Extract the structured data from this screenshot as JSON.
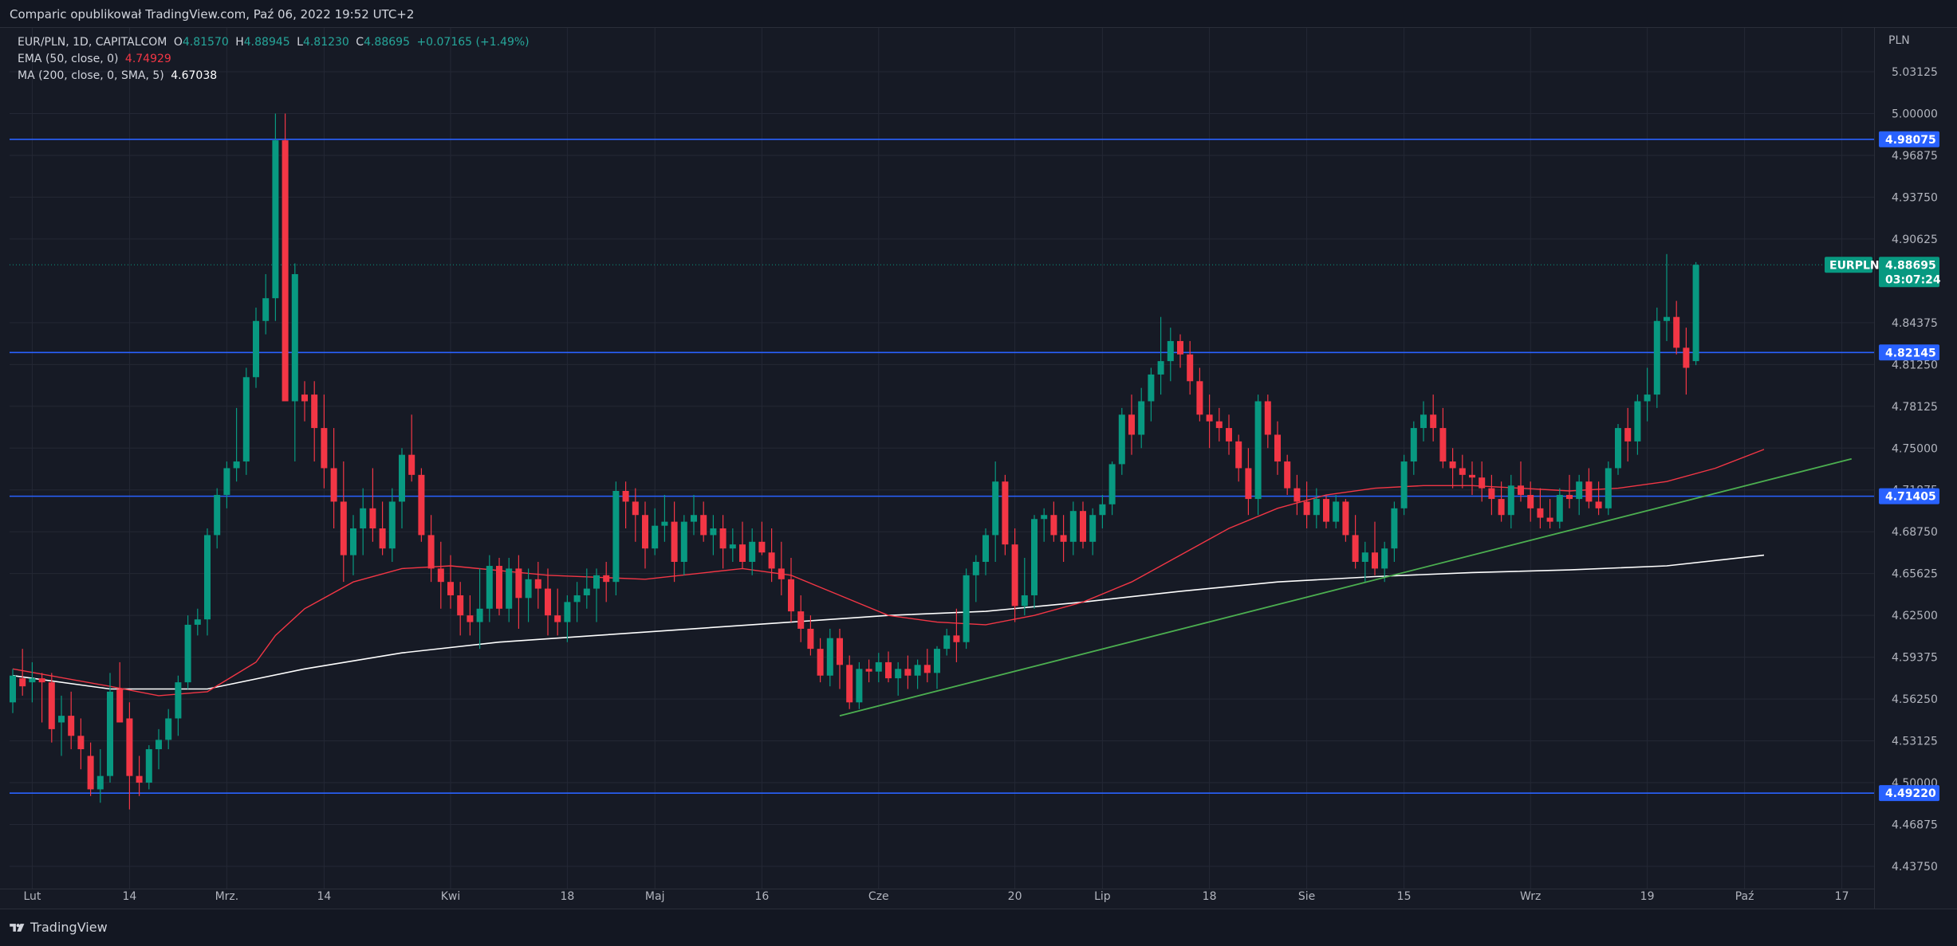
{
  "header": {
    "published": "Comparic opublikował TradingView.com, Paź 06, 2022 19:52 UTC+2"
  },
  "legend": {
    "symbol": "EUR/PLN, 1D, CAPITALCOM",
    "o_label": "O",
    "o_value": "4.81570",
    "h_label": "H",
    "h_value": "4.88945",
    "l_label": "L",
    "l_value": "4.81230",
    "c_label": "C",
    "c_value": "4.88695",
    "change": "+0.07165 (+1.49%)",
    "ema_label": "EMA (50, close, 0)",
    "ema_value": "4.74929",
    "ma_label": "MA (200, close, 0, SMA, 5)",
    "ma_value": "4.67038"
  },
  "footer": {
    "brand": "TradingView"
  },
  "chart_data": {
    "type": "candlestick",
    "symbol": "EURPLN",
    "currency": "PLN",
    "ylim": [
      4.42,
      5.04
    ],
    "y_ticks": [
      "5.03125",
      "5.00000",
      "4.96875",
      "4.93750",
      "4.90625",
      "4.84375",
      "4.81250",
      "4.78125",
      "4.75000",
      "4.71875",
      "4.68750",
      "4.65625",
      "4.62500",
      "4.59375",
      "4.56250",
      "4.53125",
      "4.50000",
      "4.46875",
      "4.43750"
    ],
    "x_labels": [
      {
        "label": "Lut",
        "i": 2
      },
      {
        "label": "14",
        "i": 12
      },
      {
        "label": "Mrz.",
        "i": 22
      },
      {
        "label": "14",
        "i": 32
      },
      {
        "label": "Kwi",
        "i": 45
      },
      {
        "label": "18",
        "i": 57
      },
      {
        "label": "Maj",
        "i": 66
      },
      {
        "label": "16",
        "i": 77
      },
      {
        "label": "Cze",
        "i": 89
      },
      {
        "label": "20",
        "i": 103
      },
      {
        "label": "Lip",
        "i": 112
      },
      {
        "label": "18",
        "i": 123
      },
      {
        "label": "Sie",
        "i": 133
      },
      {
        "label": "15",
        "i": 143
      },
      {
        "label": "Wrz",
        "i": 156
      },
      {
        "label": "19",
        "i": 168
      },
      {
        "label": "Paź",
        "i": 178
      },
      {
        "label": "17",
        "i": 188
      }
    ],
    "candles": [
      [
        4.56,
        4.585,
        4.552,
        4.58
      ],
      [
        4.578,
        4.6,
        4.565,
        4.572
      ],
      [
        4.575,
        4.59,
        4.56,
        4.578
      ],
      [
        4.578,
        4.582,
        4.545,
        4.575
      ],
      [
        4.575,
        4.582,
        4.53,
        4.54
      ],
      [
        4.545,
        4.565,
        4.52,
        4.55
      ],
      [
        4.55,
        4.568,
        4.525,
        4.535
      ],
      [
        4.535,
        4.548,
        4.51,
        4.525
      ],
      [
        4.52,
        4.53,
        4.49,
        4.495
      ],
      [
        4.495,
        4.525,
        4.485,
        4.505
      ],
      [
        4.505,
        4.582,
        4.5,
        4.568
      ],
      [
        4.57,
        4.59,
        4.545,
        4.545
      ],
      [
        4.548,
        4.56,
        4.48,
        4.505
      ],
      [
        4.505,
        4.52,
        4.49,
        4.5
      ],
      [
        4.5,
        4.528,
        4.495,
        4.525
      ],
      [
        4.525,
        4.54,
        4.51,
        4.532
      ],
      [
        4.532,
        4.555,
        4.525,
        4.548
      ],
      [
        4.548,
        4.58,
        4.535,
        4.575
      ],
      [
        4.575,
        4.625,
        4.57,
        4.618
      ],
      [
        4.618,
        4.63,
        4.61,
        4.622
      ],
      [
        4.622,
        4.69,
        4.61,
        4.685
      ],
      [
        4.685,
        4.72,
        4.675,
        4.715
      ],
      [
        4.715,
        4.74,
        4.705,
        4.735
      ],
      [
        4.735,
        4.78,
        4.725,
        4.74
      ],
      [
        4.74,
        4.81,
        4.73,
        4.803
      ],
      [
        4.803,
        4.855,
        4.795,
        4.845
      ],
      [
        4.845,
        4.88,
        4.835,
        4.862
      ],
      [
        4.862,
        5.0,
        4.845,
        4.98
      ],
      [
        4.98,
        5.0,
        4.79,
        4.785
      ],
      [
        4.785,
        4.888,
        4.74,
        4.88
      ],
      [
        4.79,
        4.8,
        4.77,
        4.785
      ],
      [
        4.79,
        4.8,
        4.74,
        4.765
      ],
      [
        4.765,
        4.79,
        4.72,
        4.735
      ],
      [
        4.735,
        4.765,
        4.69,
        4.71
      ],
      [
        4.71,
        4.74,
        4.65,
        4.67
      ],
      [
        4.67,
        4.7,
        4.655,
        4.69
      ],
      [
        4.69,
        4.72,
        4.67,
        4.705
      ],
      [
        4.705,
        4.735,
        4.68,
        4.69
      ],
      [
        4.69,
        4.71,
        4.67,
        4.675
      ],
      [
        4.675,
        4.72,
        4.665,
        4.71
      ],
      [
        4.71,
        4.75,
        4.69,
        4.745
      ],
      [
        4.745,
        4.775,
        4.725,
        4.73
      ],
      [
        4.73,
        4.735,
        4.68,
        4.685
      ],
      [
        4.685,
        4.7,
        4.65,
        4.66
      ],
      [
        4.66,
        4.68,
        4.63,
        4.65
      ],
      [
        4.65,
        4.67,
        4.63,
        4.64
      ],
      [
        4.64,
        4.65,
        4.61,
        4.625
      ],
      [
        4.625,
        4.64,
        4.61,
        4.62
      ],
      [
        4.62,
        4.66,
        4.6,
        4.63
      ],
      [
        4.63,
        4.67,
        4.62,
        4.662
      ],
      [
        4.662,
        4.668,
        4.625,
        4.63
      ],
      [
        4.63,
        4.668,
        4.62,
        4.66
      ],
      [
        4.66,
        4.67,
        4.615,
        4.638
      ],
      [
        4.638,
        4.66,
        4.62,
        4.652
      ],
      [
        4.652,
        4.665,
        4.63,
        4.645
      ],
      [
        4.645,
        4.66,
        4.61,
        4.625
      ],
      [
        4.625,
        4.645,
        4.61,
        4.62
      ],
      [
        4.62,
        4.64,
        4.605,
        4.635
      ],
      [
        4.635,
        4.65,
        4.62,
        4.64
      ],
      [
        4.64,
        4.66,
        4.63,
        4.645
      ],
      [
        4.645,
        4.66,
        4.62,
        4.655
      ],
      [
        4.655,
        4.665,
        4.635,
        4.65
      ],
      [
        4.65,
        4.725,
        4.64,
        4.718
      ],
      [
        4.718,
        4.725,
        4.69,
        4.71
      ],
      [
        4.71,
        4.72,
        4.68,
        4.7
      ],
      [
        4.7,
        4.71,
        4.66,
        4.675
      ],
      [
        4.675,
        4.705,
        4.67,
        4.692
      ],
      [
        4.692,
        4.715,
        4.68,
        4.695
      ],
      [
        4.695,
        4.71,
        4.65,
        4.665
      ],
      [
        4.665,
        4.7,
        4.655,
        4.695
      ],
      [
        4.695,
        4.715,
        4.685,
        4.7
      ],
      [
        4.7,
        4.71,
        4.68,
        4.685
      ],
      [
        4.685,
        4.7,
        4.67,
        4.69
      ],
      [
        4.69,
        4.7,
        4.66,
        4.675
      ],
      [
        4.675,
        4.69,
        4.665,
        4.678
      ],
      [
        4.678,
        4.695,
        4.66,
        4.665
      ],
      [
        4.665,
        4.69,
        4.655,
        4.68
      ],
      [
        4.68,
        4.695,
        4.67,
        4.672
      ],
      [
        4.672,
        4.69,
        4.65,
        4.66
      ],
      [
        4.66,
        4.68,
        4.64,
        4.652
      ],
      [
        4.652,
        4.668,
        4.62,
        4.628
      ],
      [
        4.628,
        4.64,
        4.605,
        4.615
      ],
      [
        4.615,
        4.625,
        4.595,
        4.6
      ],
      [
        4.6,
        4.608,
        4.575,
        4.58
      ],
      [
        4.58,
        4.615,
        4.572,
        4.608
      ],
      [
        4.608,
        4.615,
        4.57,
        4.588
      ],
      [
        4.588,
        4.595,
        4.555,
        4.56
      ],
      [
        4.56,
        4.59,
        4.555,
        4.585
      ],
      [
        4.585,
        4.592,
        4.575,
        4.583
      ],
      [
        4.583,
        4.597,
        4.575,
        4.59
      ],
      [
        4.59,
        4.598,
        4.575,
        4.578
      ],
      [
        4.578,
        4.59,
        4.565,
        4.585
      ],
      [
        4.585,
        4.595,
        4.57,
        4.58
      ],
      [
        4.58,
        4.592,
        4.57,
        4.588
      ],
      [
        4.588,
        4.6,
        4.575,
        4.582
      ],
      [
        4.582,
        4.602,
        4.57,
        4.6
      ],
      [
        4.6,
        4.615,
        4.595,
        4.61
      ],
      [
        4.61,
        4.63,
        4.59,
        4.605
      ],
      [
        4.605,
        4.66,
        4.6,
        4.655
      ],
      [
        4.655,
        4.67,
        4.635,
        4.665
      ],
      [
        4.665,
        4.69,
        4.655,
        4.685
      ],
      [
        4.685,
        4.74,
        4.665,
        4.725
      ],
      [
        4.725,
        4.73,
        4.67,
        4.678
      ],
      [
        4.678,
        4.69,
        4.62,
        4.632
      ],
      [
        4.632,
        4.668,
        4.625,
        4.64
      ],
      [
        4.64,
        4.7,
        4.63,
        4.697
      ],
      [
        4.697,
        4.705,
        4.68,
        4.7
      ],
      [
        4.7,
        4.71,
        4.68,
        4.685
      ],
      [
        4.685,
        4.7,
        4.665,
        4.68
      ],
      [
        4.68,
        4.71,
        4.67,
        4.703
      ],
      [
        4.703,
        4.71,
        4.675,
        4.68
      ],
      [
        4.68,
        4.705,
        4.67,
        4.7
      ],
      [
        4.7,
        4.715,
        4.69,
        4.708
      ],
      [
        4.708,
        4.74,
        4.7,
        4.738
      ],
      [
        4.738,
        4.78,
        4.73,
        4.775
      ],
      [
        4.775,
        4.79,
        4.745,
        4.76
      ],
      [
        4.76,
        4.795,
        4.75,
        4.785
      ],
      [
        4.785,
        4.81,
        4.77,
        4.805
      ],
      [
        4.805,
        4.848,
        4.79,
        4.815
      ],
      [
        4.815,
        4.84,
        4.8,
        4.83
      ],
      [
        4.83,
        4.835,
        4.81,
        4.82
      ],
      [
        4.82,
        4.83,
        4.79,
        4.8
      ],
      [
        4.8,
        4.81,
        4.77,
        4.775
      ],
      [
        4.775,
        4.79,
        4.75,
        4.77
      ],
      [
        4.77,
        4.78,
        4.755,
        4.765
      ],
      [
        4.765,
        4.775,
        4.745,
        4.755
      ],
      [
        4.755,
        4.76,
        4.725,
        4.735
      ],
      [
        4.735,
        4.75,
        4.7,
        4.712
      ],
      [
        4.712,
        4.79,
        4.7,
        4.785
      ],
      [
        4.785,
        4.79,
        4.75,
        4.76
      ],
      [
        4.76,
        4.77,
        4.73,
        4.74
      ],
      [
        4.74,
        4.745,
        4.715,
        4.72
      ],
      [
        4.72,
        4.73,
        4.7,
        4.71
      ],
      [
        4.71,
        4.725,
        4.69,
        4.7
      ],
      [
        4.7,
        4.72,
        4.69,
        4.712
      ],
      [
        4.712,
        4.715,
        4.69,
        4.695
      ],
      [
        4.695,
        4.715,
        4.69,
        4.71
      ],
      [
        4.71,
        4.712,
        4.68,
        4.685
      ],
      [
        4.685,
        4.7,
        4.66,
        4.665
      ],
      [
        4.665,
        4.68,
        4.65,
        4.672
      ],
      [
        4.672,
        4.695,
        4.655,
        4.66
      ],
      [
        4.66,
        4.68,
        4.65,
        4.675
      ],
      [
        4.675,
        4.71,
        4.665,
        4.705
      ],
      [
        4.705,
        4.745,
        4.7,
        4.74
      ],
      [
        4.74,
        4.77,
        4.73,
        4.765
      ],
      [
        4.765,
        4.785,
        4.755,
        4.775
      ],
      [
        4.775,
        4.79,
        4.755,
        4.765
      ],
      [
        4.765,
        4.78,
        4.735,
        4.74
      ],
      [
        4.74,
        4.75,
        4.72,
        4.735
      ],
      [
        4.735,
        4.745,
        4.72,
        4.73
      ],
      [
        4.73,
        4.74,
        4.715,
        4.728
      ],
      [
        4.728,
        4.74,
        4.71,
        4.72
      ],
      [
        4.72,
        4.73,
        4.7,
        4.712
      ],
      [
        4.712,
        4.725,
        4.695,
        4.7
      ],
      [
        4.7,
        4.73,
        4.69,
        4.722
      ],
      [
        4.722,
        4.74,
        4.71,
        4.715
      ],
      [
        4.715,
        4.725,
        4.695,
        4.705
      ],
      [
        4.705,
        4.72,
        4.69,
        4.698
      ],
      [
        4.698,
        4.712,
        4.69,
        4.695
      ],
      [
        4.695,
        4.72,
        4.69,
        4.715
      ],
      [
        4.715,
        4.73,
        4.705,
        4.712
      ],
      [
        4.712,
        4.73,
        4.7,
        4.725
      ],
      [
        4.725,
        4.735,
        4.705,
        4.71
      ],
      [
        4.71,
        4.725,
        4.7,
        4.705
      ],
      [
        4.705,
        4.74,
        4.7,
        4.735
      ],
      [
        4.735,
        4.768,
        4.73,
        4.765
      ],
      [
        4.765,
        4.78,
        4.74,
        4.755
      ],
      [
        4.755,
        4.79,
        4.745,
        4.785
      ],
      [
        4.785,
        4.81,
        4.77,
        4.79
      ],
      [
        4.79,
        4.855,
        4.78,
        4.845
      ],
      [
        4.845,
        4.895,
        4.83,
        4.848
      ],
      [
        4.848,
        4.86,
        4.82,
        4.825
      ],
      [
        4.825,
        4.84,
        4.79,
        4.81
      ],
      [
        4.815,
        4.889,
        4.812,
        4.887
      ]
    ],
    "ema_50": [
      [
        0,
        4.585
      ],
      [
        10,
        4.572
      ],
      [
        15,
        4.565
      ],
      [
        20,
        4.568
      ],
      [
        25,
        4.59
      ],
      [
        27,
        4.61
      ],
      [
        30,
        4.63
      ],
      [
        35,
        4.65
      ],
      [
        40,
        4.66
      ],
      [
        45,
        4.662
      ],
      [
        55,
        4.655
      ],
      [
        65,
        4.652
      ],
      [
        75,
        4.66
      ],
      [
        80,
        4.655
      ],
      [
        85,
        4.64
      ],
      [
        90,
        4.625
      ],
      [
        95,
        4.62
      ],
      [
        100,
        4.618
      ],
      [
        105,
        4.625
      ],
      [
        110,
        4.635
      ],
      [
        115,
        4.65
      ],
      [
        120,
        4.67
      ],
      [
        125,
        4.69
      ],
      [
        130,
        4.705
      ],
      [
        135,
        4.715
      ],
      [
        140,
        4.72
      ],
      [
        145,
        4.722
      ],
      [
        150,
        4.722
      ],
      [
        155,
        4.72
      ],
      [
        160,
        4.718
      ],
      [
        165,
        4.72
      ],
      [
        170,
        4.725
      ],
      [
        175,
        4.735
      ],
      [
        180,
        4.749
      ]
    ],
    "ma_200": [
      [
        0,
        4.58
      ],
      [
        10,
        4.57
      ],
      [
        20,
        4.57
      ],
      [
        30,
        4.585
      ],
      [
        40,
        4.597
      ],
      [
        50,
        4.605
      ],
      [
        60,
        4.61
      ],
      [
        70,
        4.615
      ],
      [
        80,
        4.62
      ],
      [
        90,
        4.625
      ],
      [
        100,
        4.628
      ],
      [
        110,
        4.635
      ],
      [
        120,
        4.643
      ],
      [
        130,
        4.65
      ],
      [
        140,
        4.654
      ],
      [
        150,
        4.657
      ],
      [
        160,
        4.659
      ],
      [
        170,
        4.662
      ],
      [
        180,
        4.67
      ]
    ],
    "trendline": [
      [
        85,
        4.55
      ],
      [
        189,
        4.742
      ]
    ],
    "levels": [
      {
        "label": "4.98075",
        "value": 4.98075,
        "color": "#2962ff"
      },
      {
        "label": "4.82145",
        "value": 4.82145,
        "color": "#2962ff"
      },
      {
        "label": "4.71405",
        "value": 4.71405,
        "color": "#2962ff"
      },
      {
        "label": "4.49220",
        "value": 4.4922,
        "color": "#2962ff"
      }
    ],
    "last_price": {
      "symbol": "EURPLN",
      "value": 4.88695,
      "label": "4.88695",
      "countdown": "03:07:24",
      "color": "#089981"
    },
    "colors": {
      "up": "#089981",
      "down": "#f23645",
      "ema": "#f23645",
      "ma": "#ffffff",
      "trend": "#4caf50",
      "grid": "#242835",
      "bg": "#161a25"
    }
  }
}
